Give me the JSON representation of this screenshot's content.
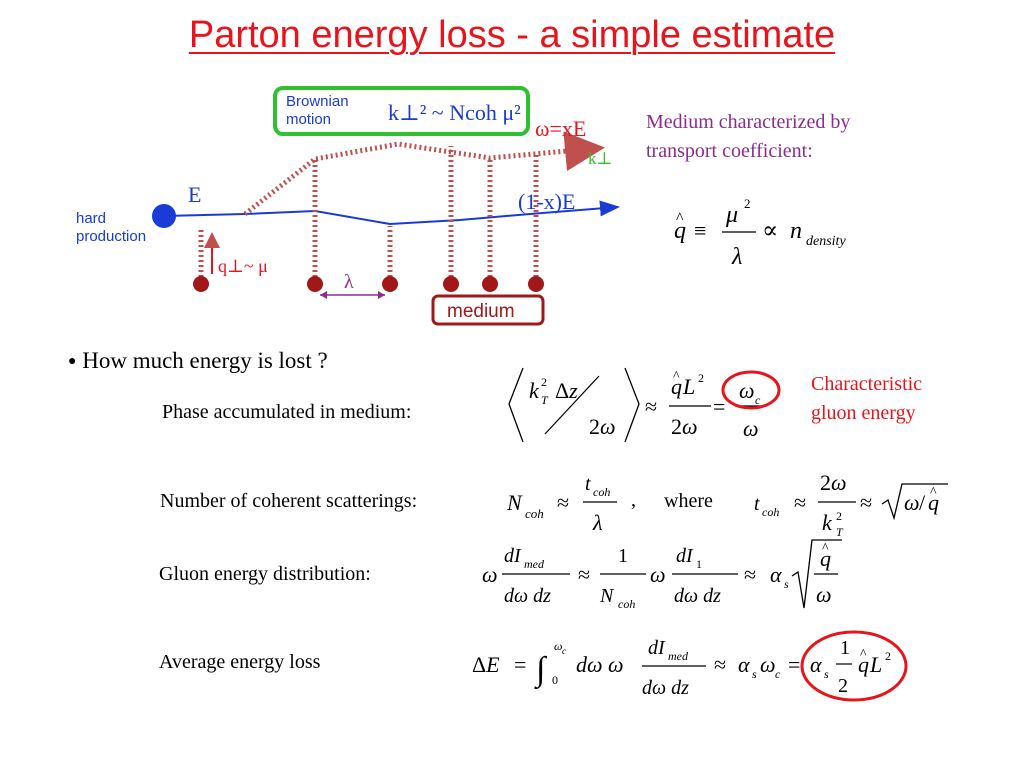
{
  "title": "Parton energy loss - a simple estimate",
  "diagram": {
    "brownian_label_line1": "Brownian",
    "brownian_label_line2": "motion",
    "brownian_formula": "k⊥² ~ Ncoh μ²",
    "omega_label": "ω=xE",
    "kperp_label": "k⊥",
    "E_label": "E",
    "one_minus_x_label": "(1-x)E",
    "hard_line1": "hard",
    "hard_line2": "production",
    "q_label": "q⊥~ μ",
    "lambda_label": "λ",
    "medium_label": "medium"
  },
  "medium_text": {
    "line1": "Medium characterized by",
    "line2": "transport coefficient:"
  },
  "bullet": "How much energy is lost ?",
  "rows": [
    {
      "label": "Phase accumulated in medium:"
    },
    {
      "label": "Number of coherent scatterings:"
    },
    {
      "label": "Gluon energy distribution:"
    },
    {
      "label": "Average energy loss"
    }
  ],
  "characteristic": {
    "line1": "Characteristic",
    "line2": "gluon energy"
  },
  "where_label": "where",
  "colors": {
    "title": "#e8141b",
    "purple": "#8b2d8f",
    "diagram_blue": "#1a3bd6",
    "gluon": "#c0504d",
    "green_box": "#2fc12f",
    "dot": "#a01818"
  }
}
